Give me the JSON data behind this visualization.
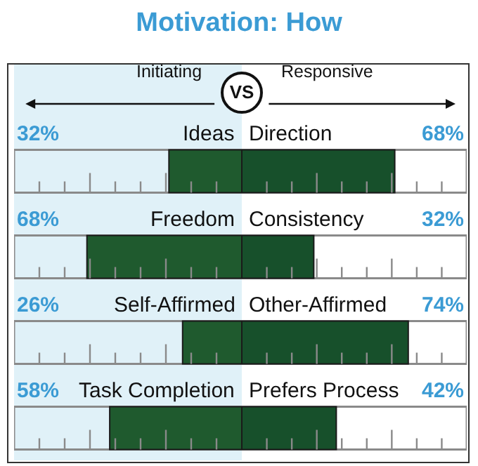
{
  "chart_data": [
    {
      "type": "bar",
      "orientation": "horizontal",
      "title": "Motivation: How",
      "annotations": [
        "VS"
      ],
      "categories": [
        "Ideas",
        "Freedom",
        "Self-Affirmed",
        "Task Completion"
      ],
      "series": [
        {
          "name": "Initiating",
          "color": "#1f5a2e",
          "values": [
            32,
            68,
            26,
            58
          ],
          "value_labels": [
            "32%",
            "68%",
            "26%",
            "58%"
          ]
        }
      ],
      "xlim": [
        100,
        0
      ],
      "tick_labels": false,
      "grid": false,
      "legend": false
    },
    {
      "type": "bar",
      "orientation": "horizontal",
      "categories": [
        "Direction",
        "Consistency",
        "Other-Affirmed",
        "Prefers Process"
      ],
      "series": [
        {
          "name": "Responsive",
          "color": "#17502b",
          "values": [
            68,
            32,
            74,
            42
          ],
          "value_labels": [
            "68%",
            "32%",
            "74%",
            "42%"
          ]
        }
      ],
      "xlim": [
        0,
        100
      ],
      "tick_labels": false,
      "grid": false,
      "legend": false
    }
  ]
}
